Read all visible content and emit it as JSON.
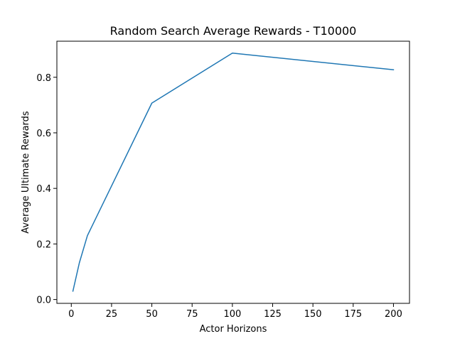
{
  "chart_data": {
    "type": "line",
    "title": "Random Search Average Rewards - T10000",
    "xlabel": "Actor Horizons",
    "ylabel": "Average Ultimate Rewards",
    "xlim": [
      -8.95,
      209.95
    ],
    "ylim": [
      -0.0138,
      0.9298
    ],
    "xticks": [
      0,
      25,
      50,
      75,
      100,
      125,
      150,
      175,
      200
    ],
    "yticks": [
      0.0,
      0.2,
      0.4,
      0.6,
      0.8
    ],
    "xtick_labels": [
      "0",
      "25",
      "50",
      "75",
      "100",
      "125",
      "150",
      "175",
      "200"
    ],
    "ytick_labels": [
      "0.0",
      "0.2",
      "0.4",
      "0.6",
      "0.8"
    ],
    "grid": false,
    "series": [
      {
        "color": "#1f77b4",
        "x": [
          1,
          5,
          10,
          50,
          100,
          200
        ],
        "y": [
          0.03,
          0.132,
          0.23,
          0.707,
          0.887,
          0.827
        ]
      }
    ]
  }
}
